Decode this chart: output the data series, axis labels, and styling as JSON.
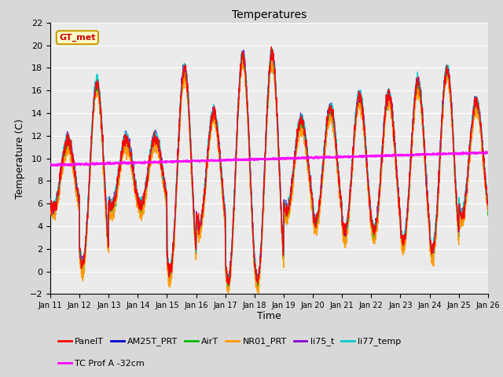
{
  "title": "Temperatures",
  "xlabel": "Time",
  "ylabel": "Temperature (C)",
  "ylim": [
    -2,
    22
  ],
  "yticks": [
    -2,
    0,
    2,
    4,
    6,
    8,
    10,
    12,
    14,
    16,
    18,
    20,
    22
  ],
  "xtick_labels": [
    "Jan 11",
    "Jan 12",
    "Jan 13",
    "Jan 14",
    "Jan 15",
    "Jan 16",
    "Jan 17",
    "Jan 18",
    "Jan 19",
    "Jan 20",
    "Jan 21",
    "Jan 22",
    "Jan 23",
    "Jan 24",
    "Jan 25",
    "Jan 26"
  ],
  "series_order": [
    "PanelT",
    "AM25T_PRT",
    "AirT",
    "NR01_PRT",
    "li75_t",
    "li77_temp",
    "TC Prof A -32cm"
  ],
  "series": {
    "PanelT": {
      "color": "#ff0000",
      "lw": 1.0,
      "zorder": 5
    },
    "AM25T_PRT": {
      "color": "#0000cc",
      "lw": 1.0,
      "zorder": 4
    },
    "AirT": {
      "color": "#00bb00",
      "lw": 1.0,
      "zorder": 4
    },
    "NR01_PRT": {
      "color": "#ff9900",
      "lw": 1.0,
      "zorder": 4
    },
    "li75_t": {
      "color": "#8800cc",
      "lw": 1.0,
      "zorder": 4
    },
    "li77_temp": {
      "color": "#00cccc",
      "lw": 1.0,
      "zorder": 4
    },
    "TC Prof A -32cm": {
      "color": "#ff00ff",
      "lw": 1.5,
      "zorder": 6
    }
  },
  "annotation": {
    "text": "GT_met",
    "fontsize": 8,
    "color": "#cc0000",
    "bbox_facecolor": "#ffffcc",
    "bbox_edgecolor": "#cc9900"
  },
  "bg_color": "#d8d8d8",
  "plot_bg_color": "#ebebeb",
  "grid_color": "#ffffff",
  "legend_fontsize": 8,
  "title_fontsize": 10,
  "axis_fontsize": 8,
  "label_fontsize": 9
}
